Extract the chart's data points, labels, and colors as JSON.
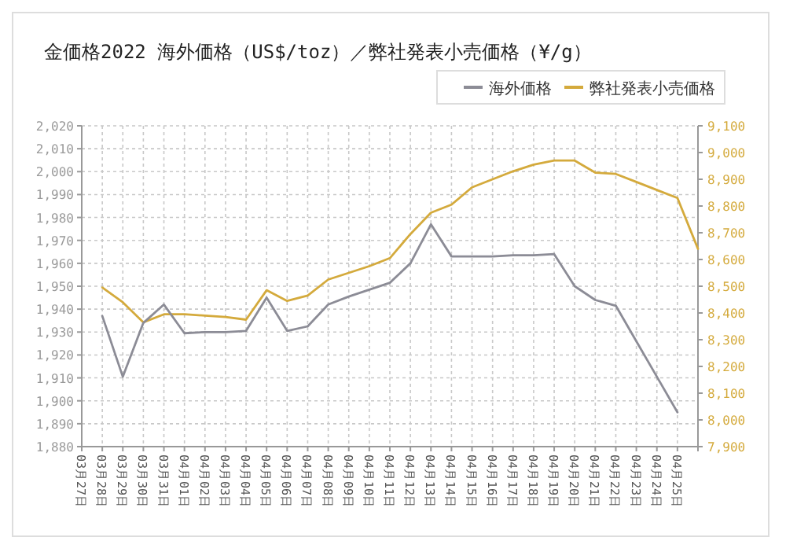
{
  "chart_data": {
    "type": "line",
    "title": "金価格2022 海外価格（US$/toz）／弊社発表小売価格（¥/g）",
    "categories": [
      "03月27日",
      "03月28日",
      "03月29日",
      "03月30日",
      "03月31日",
      "04月01日",
      "04月02日",
      "04月03日",
      "04月04日",
      "04月05日",
      "04月06日",
      "04月07日",
      "04月08日",
      "04月09日",
      "04月10日",
      "04月11日",
      "04月12日",
      "04月13日",
      "04月14日",
      "04月15日",
      "04月16日",
      "04月17日",
      "04月18日",
      "04月19日",
      "04月20日",
      "04月21日",
      "04月22日",
      "04月23日",
      "04月24日",
      "04月25日",
      null
    ],
    "series": [
      {
        "name": "海外価格",
        "color": "#8c8c96",
        "values": [
          null,
          1937,
          1910.5,
          1934,
          1942,
          1929.5,
          1930,
          1930,
          1930.5,
          1945,
          1930.5,
          1932.5,
          1942,
          1945.5,
          1948.5,
          1951.5,
          1960,
          1977,
          1963,
          1963,
          1963,
          1963.5,
          1963.5,
          1964,
          1950,
          1944,
          1941.5,
          1926,
          1910.5,
          1895,
          null
        ]
      },
      {
        "name": "弊社発表小売価格",
        "color": "#d4aa3c",
        "axis": "y2",
        "values": [
          null,
          8495,
          8440,
          8365,
          8395,
          8395,
          8390,
          8385,
          8375,
          8485,
          8445,
          8465,
          8525,
          8550,
          8575,
          8605,
          8695,
          8775,
          8805,
          8870,
          8900,
          8930,
          8955,
          8970,
          8970,
          8925,
          8920,
          8890,
          8860,
          8830,
          8640
        ]
      }
    ],
    "ylim": [
      1880,
      2020
    ],
    "yticks": [
      {
        "value": 1880,
        "label": "1,880"
      },
      {
        "value": 1890,
        "label": "1,890"
      },
      {
        "value": 1900,
        "label": "1,900"
      },
      {
        "value": 1910,
        "label": "1,910"
      },
      {
        "value": 1920,
        "label": "1,920"
      },
      {
        "value": 1930,
        "label": "1,930"
      },
      {
        "value": 1940,
        "label": "1,940"
      },
      {
        "value": 1950,
        "label": "1,950"
      },
      {
        "value": 1960,
        "label": "1,960"
      },
      {
        "value": 1970,
        "label": "1,970"
      },
      {
        "value": 1980,
        "label": "1,980"
      },
      {
        "value": 1990,
        "label": "1,990"
      },
      {
        "value": 2000,
        "label": "2,000"
      },
      {
        "value": 2010,
        "label": "2,010"
      },
      {
        "value": 2020,
        "label": "2,020"
      }
    ],
    "y2lim": [
      7900,
      9100
    ],
    "y2ticks": [
      {
        "value": 7900,
        "label": "7,900"
      },
      {
        "value": 8000,
        "label": "8,000"
      },
      {
        "value": 8100,
        "label": "8,100"
      },
      {
        "value": 8200,
        "label": "8,200"
      },
      {
        "value": 8300,
        "label": "8,300"
      },
      {
        "value": 8400,
        "label": "8,400"
      },
      {
        "value": 8500,
        "label": "8,500"
      },
      {
        "value": 8600,
        "label": "8,600"
      },
      {
        "value": 8700,
        "label": "8,700"
      },
      {
        "value": 8800,
        "label": "8,800"
      },
      {
        "value": 8900,
        "label": "8,900"
      },
      {
        "value": 9000,
        "label": "9,000"
      },
      {
        "value": 9100,
        "label": "9,100"
      }
    ],
    "grid": true,
    "legend": "top right",
    "marker": "none",
    "line_style": "solid"
  }
}
